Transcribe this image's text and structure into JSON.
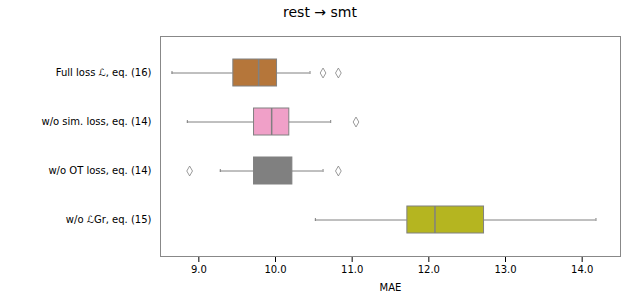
{
  "chart_data": {
    "type": "box",
    "orientation": "horizontal",
    "title": "rest → smt",
    "xlabel": "MAE",
    "xlim": [
      8.5,
      14.5
    ],
    "xticks": [
      9,
      10,
      11,
      12,
      13,
      14
    ],
    "categories": [
      "Full loss ℒ, eq. (16)",
      "w/o sim. loss, eq. (14)",
      "w/o OT loss, eq. (14)",
      "w/o ℒGr, eq. (15)"
    ],
    "boxes": [
      {
        "whislo": 8.65,
        "q1": 9.45,
        "med": 9.78,
        "q3": 10.02,
        "whishi": 10.45,
        "fliers": [
          10.62,
          10.82
        ]
      },
      {
        "whislo": 8.85,
        "q1": 9.72,
        "med": 9.95,
        "q3": 10.18,
        "whishi": 10.72,
        "fliers": [
          11.05
        ]
      },
      {
        "whislo": 9.28,
        "q1": 9.72,
        "med": 9.98,
        "q3": 10.22,
        "whishi": 10.62,
        "fliers": [
          8.88,
          10.82
        ]
      },
      {
        "whislo": 10.52,
        "q1": 11.72,
        "med": 12.08,
        "q3": 12.72,
        "whishi": 14.18,
        "fliers": []
      }
    ],
    "colors": [
      "#b5763a",
      "#f0a0c8",
      "#808080",
      "#b5b520"
    ],
    "grid": false
  }
}
